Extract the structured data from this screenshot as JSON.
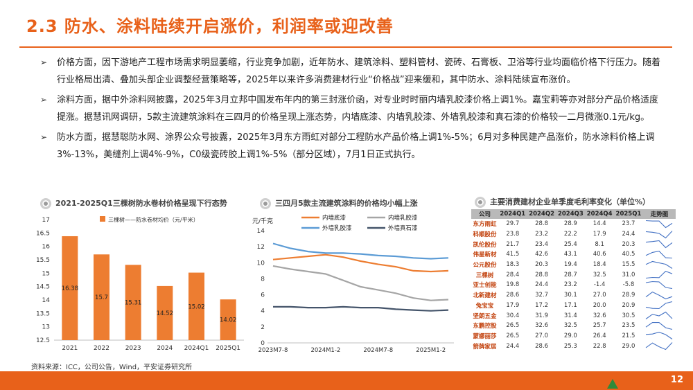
{
  "title": "2.3 防水、涂料陆续开启涨价，利润率或迎改善",
  "bullets": [
    "价格方面，因下游地产工程市场需求明显萎缩，行业竞争加剧，近年防水、建筑涂料、塑料管材、瓷砖、石膏板、卫浴等行业均面临价格下行压力。随着行业格局出清、叠加头部企业调整经营策略等，2025年以来许多消费建材行业“价格战”迎来缓和，其中防水、涂料陆续宣布涨价。",
    "涂料方面，据中外涂料网披露，2025年3月立邦中国发布年内的第三封涨价函，对专业时时丽内墙乳胶漆价格上调1%。嘉宝莉等亦对部分产品价格适度提涨。据慧讯网调研，5款主流建筑涂料在三四月的价格呈现上涨态势，内墙底漆、内墙乳胶漆、外墙乳胶漆和真石漆的价格较一二月微涨0.1元/kg。",
    "防水方面，据慧聪防水网、涂界公众号披露，2025年3月东方雨虹对部分工程防水产品价格上调1%-5%；6月对多种民建产品涨价，防水涂料价格上调3%-13%，美缝剂上调4%-9%，C0级瓷砖胶上调1%-5%（部分区域），7月1日正式执行。"
  ],
  "panels": {
    "bar_title": "2021-2025Q1三棵树防水卷材价格呈现下行态势",
    "line_title": "三四月5款主流建筑涂料的价格均小幅上涨",
    "table_title": "主要消费建材企业单季度毛利率变化（单位%）"
  },
  "source": "资料来源：ICC，公司公告，Wind，平安证券研究所",
  "page_number": "12",
  "colors": {
    "accent": "#e8611a",
    "bar": "#ed7d31",
    "sparkline": "#4472c4"
  },
  "chart_data": [
    {
      "type": "bar",
      "legend": "三棵树——防水卷材均价（元/平米）",
      "categories": [
        "2021",
        "2022",
        "2023",
        "2024",
        "2024Q1",
        "2025Q1"
      ],
      "values": [
        16.38,
        15.7,
        15.31,
        14.52,
        15.02,
        14.02
      ],
      "ylim": [
        12.5,
        17
      ],
      "yticks": [
        "12.5",
        "13",
        "13.5",
        "14",
        "14.5",
        "15",
        "15.5",
        "16",
        "16.5",
        "17"
      ]
    },
    {
      "type": "line",
      "ylabel": "元/千克",
      "ylim": [
        0,
        14
      ],
      "yticks": [
        "0",
        "2",
        "4",
        "6",
        "8",
        "10",
        "12",
        "14"
      ],
      "xticks": [
        "2023M7-8",
        "2024M1-2",
        "2024M7-8",
        "2025M1-2"
      ],
      "x": [
        "2023M7-8",
        "2023M9-10",
        "2023M11-12",
        "2024M1-2",
        "2024M3-4",
        "2024M5-6",
        "2024M7-8",
        "2024M9-10",
        "2024M11-12",
        "2025M1-2",
        "2025M3-4"
      ],
      "series": [
        {
          "name": "内墙底漆",
          "color": "#ed7d31",
          "values": [
            10.4,
            10.6,
            10.8,
            11.0,
            10.7,
            10.2,
            9.8,
            9.5,
            9.0,
            8.9,
            9.0
          ]
        },
        {
          "name": "内墙乳胶漆",
          "color": "#a5a5a5",
          "values": [
            9.6,
            9.2,
            8.9,
            8.6,
            7.8,
            7.0,
            6.6,
            6.2,
            5.6,
            5.3,
            5.4
          ]
        },
        {
          "name": "外墙乳胶漆",
          "color": "#5b9bd5",
          "values": [
            12.4,
            11.8,
            11.4,
            11.2,
            11.2,
            11.1,
            10.9,
            10.8,
            10.6,
            10.5,
            10.6
          ]
        },
        {
          "name": "外墙真石漆",
          "color": "#44546a",
          "values": [
            4.5,
            4.5,
            4.4,
            4.4,
            4.5,
            4.4,
            4.4,
            4.2,
            4.1,
            4.0,
            4.1
          ]
        }
      ]
    },
    {
      "type": "table",
      "columns": [
        "公司",
        "2024Q1",
        "2024Q2",
        "2024Q3",
        "2024Q4",
        "2025Q1",
        "走势图"
      ],
      "rows": [
        [
          "东方雨虹",
          "29.7",
          "28.8",
          "28.9",
          "14.4",
          "23.7"
        ],
        [
          "科顺股份",
          "23.8",
          "23.2",
          "22.2",
          "17.9",
          "24.4"
        ],
        [
          "凯伦股份",
          "21.7",
          "23.4",
          "25.4",
          "8.1",
          "20.3"
        ],
        [
          "伟星新材",
          "41.5",
          "42.6",
          "43.1",
          "40.6",
          "40.5"
        ],
        [
          "公元股份",
          "18.3",
          "20.3",
          "19.4",
          "18.4",
          "15.5"
        ],
        [
          "三棵树",
          "28.4",
          "28.8",
          "28.7",
          "32.5",
          "31.0"
        ],
        [
          "亚士创能",
          "19.8",
          "24.4",
          "23.2",
          "-1.4",
          "-5.8"
        ],
        [
          "北新建材",
          "28.6",
          "32.7",
          "30.1",
          "27.0",
          "28.9"
        ],
        [
          "兔宝宝",
          "17.9",
          "17.2",
          "17.1",
          "20.0",
          "20.9"
        ],
        [
          "坚朗五金",
          "30.4",
          "31.9",
          "31.4",
          "32.6",
          "30.5"
        ],
        [
          "东鹏控股",
          "26.5",
          "32.6",
          "32.5",
          "25.7",
          "23.5"
        ],
        [
          "蒙娜丽莎",
          "26.5",
          "27.0",
          "29.0",
          "26.4",
          "21.5"
        ],
        [
          "箭牌家居",
          "24.4",
          "28.6",
          "25.3",
          "22.8",
          "29.0"
        ]
      ]
    }
  ]
}
